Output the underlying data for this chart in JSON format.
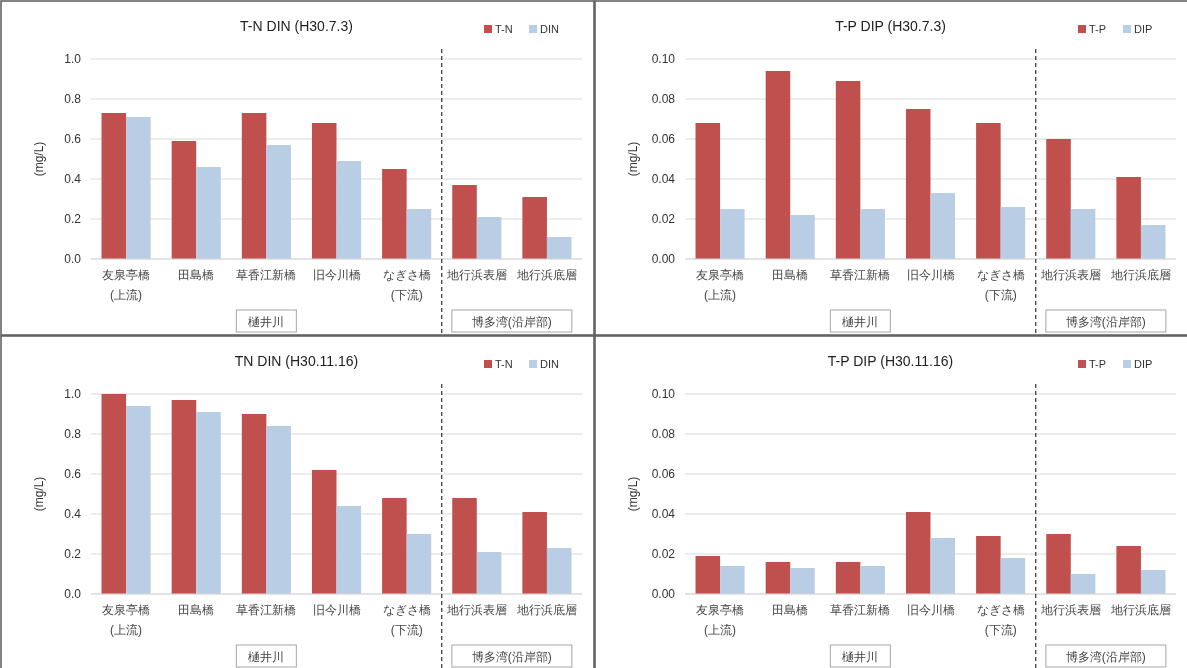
{
  "chart_data": [
    {
      "type": "bar",
      "title": "T-N DIN (H30.7.3)",
      "ylabel": "(mg/L)",
      "categories": [
        "友泉亭橋\n(上流)",
        "田島橋",
        "草香江新橋",
        "旧今川橋",
        "なぎさ橋\n(下流)",
        "地行浜表層",
        "地行浜底層"
      ],
      "series": [
        {
          "name": "T-N",
          "color": "#c0504d",
          "values": [
            0.73,
            0.59,
            0.73,
            0.68,
            0.45,
            0.37,
            0.31
          ]
        },
        {
          "name": "DIN",
          "color": "#b9cde5",
          "values": [
            0.71,
            0.46,
            0.57,
            0.49,
            0.25,
            0.21,
            0.11
          ]
        }
      ],
      "ylim": [
        0,
        1
      ],
      "yticks": [
        {
          "value": 0,
          "label": "0.0"
        },
        {
          "value": 0.2,
          "label": "0.2"
        },
        {
          "value": 0.4,
          "label": "0.4"
        },
        {
          "value": 0.6,
          "label": "0.6"
        },
        {
          "value": 0.8,
          "label": "0.8"
        },
        {
          "value": 1,
          "label": "1.0"
        }
      ],
      "grid": "y",
      "legend": "top right",
      "annotations": [
        "樋井川",
        "博多湾(沿岸部)"
      ]
    },
    {
      "type": "bar",
      "title": "T-P DIP (H30.7.3)",
      "ylabel": "(mg/L)",
      "categories": [
        "友泉亭橋\n(上流)",
        "田島橋",
        "草香江新橋",
        "旧今川橋",
        "なぎさ橋\n(下流)",
        "地行浜表層",
        "地行浜底層"
      ],
      "series": [
        {
          "name": "T-P",
          "color": "#c0504d",
          "values": [
            0.068,
            0.094,
            0.089,
            0.075,
            0.068,
            0.06,
            0.041
          ]
        },
        {
          "name": "DIP",
          "color": "#b9cde5",
          "values": [
            0.025,
            0.022,
            0.025,
            0.033,
            0.026,
            0.025,
            0.017
          ]
        }
      ],
      "ylim": [
        0,
        0.1
      ],
      "yticks": [
        {
          "value": 0,
          "label": "0.00"
        },
        {
          "value": 0.02,
          "label": "0.02"
        },
        {
          "value": 0.04,
          "label": "0.04"
        },
        {
          "value": 0.06,
          "label": "0.06"
        },
        {
          "value": 0.08,
          "label": "0.08"
        },
        {
          "value": 0.1,
          "label": "0.10"
        }
      ],
      "grid": "y",
      "legend": "top right",
      "annotations": [
        "樋井川",
        "博多湾(沿岸部)"
      ]
    },
    {
      "type": "bar",
      "title": "TN DIN (H30.11.16)",
      "ylabel": "(mg/L)",
      "categories": [
        "友泉亭橋\n(上流)",
        "田島橋",
        "草香江新橋",
        "旧今川橋",
        "なぎさ橋\n(下流)",
        "地行浜表層",
        "地行浜底層"
      ],
      "series": [
        {
          "name": "T-N",
          "color": "#c0504d",
          "values": [
            1.0,
            0.97,
            0.9,
            0.62,
            0.48,
            0.48,
            0.41
          ]
        },
        {
          "name": "DIN",
          "color": "#b9cde5",
          "values": [
            0.94,
            0.91,
            0.84,
            0.44,
            0.3,
            0.21,
            0.23
          ]
        }
      ],
      "ylim": [
        0,
        1
      ],
      "yticks": [
        {
          "value": 0,
          "label": "0.0"
        },
        {
          "value": 0.2,
          "label": "0.2"
        },
        {
          "value": 0.4,
          "label": "0.4"
        },
        {
          "value": 0.6,
          "label": "0.6"
        },
        {
          "value": 0.8,
          "label": "0.8"
        },
        {
          "value": 1,
          "label": "1.0"
        }
      ],
      "grid": "y",
      "legend": "top right",
      "annotations": [
        "樋井川",
        "博多湾(沿岸部)"
      ]
    },
    {
      "type": "bar",
      "title": "T-P DIP (H30.11.16)",
      "ylabel": "(mg/L)",
      "categories": [
        "友泉亭橋\n(上流)",
        "田島橋",
        "草香江新橋",
        "旧今川橋",
        "なぎさ橋\n(下流)",
        "地行浜表層",
        "地行浜底層"
      ],
      "series": [
        {
          "name": "T-P",
          "color": "#c0504d",
          "values": [
            0.019,
            0.016,
            0.016,
            0.041,
            0.029,
            0.03,
            0.024
          ]
        },
        {
          "name": "DIP",
          "color": "#b9cde5",
          "values": [
            0.014,
            0.013,
            0.014,
            0.028,
            0.018,
            0.01,
            0.012
          ]
        }
      ],
      "ylim": [
        0,
        0.1
      ],
      "yticks": [
        {
          "value": 0,
          "label": "0.00"
        },
        {
          "value": 0.02,
          "label": "0.02"
        },
        {
          "value": 0.04,
          "label": "0.04"
        },
        {
          "value": 0.06,
          "label": "0.06"
        },
        {
          "value": 0.08,
          "label": "0.08"
        },
        {
          "value": 0.1,
          "label": "0.10"
        }
      ],
      "grid": "y",
      "legend": "top right",
      "annotations": [
        "樋井川",
        "博多湾(沿岸部)"
      ]
    }
  ]
}
